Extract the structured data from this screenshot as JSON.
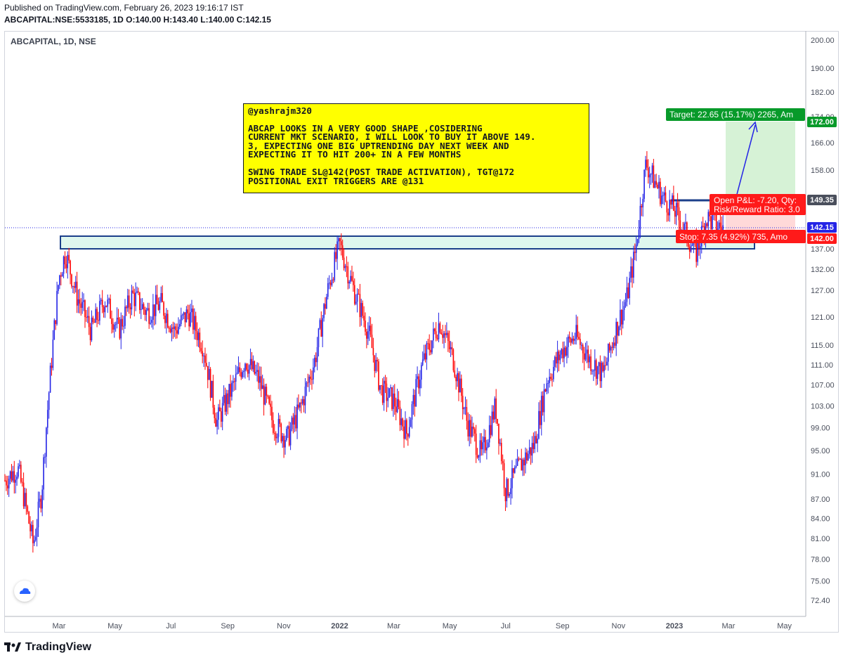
{
  "header": {
    "published": "Published on TradingView.com, February 26, 2023 19:16:17 IST",
    "symbol_line": "ABCAPITAL:NSE:5533185, 1D",
    "ohlc": "O:140.00 H:143.40 L:140.00 C:142.15"
  },
  "chart_label": "ABCAPITAL, 1D, NSE",
  "note": {
    "handle": "@yashrajm320",
    "lines": [
      "ABCAP LOOKS IN A VERY GOOD SHAPE ,COSIDERING",
      "CURRENT MKT SCENARIO, I WILL LOOK TO BUY IT ABOVE 149.",
      "3, EXPECTING ONE BIG UPTRENDING DAY NEXT WEEK AND",
      "EXPECTING IT TO HIT 200+ IN A FEW MONTHS"
    ],
    "lines2": [
      "SWING TRADE SL@142(POST TRADE ACTIVATION), TGT@172",
      "POSITIONAL EXIT TRIGGERS ARE @131"
    ]
  },
  "labels": {
    "target": "Target: 22.65 (15.17%) 2265, Am",
    "open_pl": "Open P&L: -7.20, Qty: ",
    "rr": "Risk/Reward Ratio: 3.0",
    "stop": "Stop: 7.35 (4.92%) 735, Amo",
    "price_172": "172.00",
    "price_149": "149.35",
    "price_142_15": "142.15",
    "price_142": "142.00"
  },
  "footer": {
    "brand": "TradingView"
  },
  "colors": {
    "up": "#2424e6",
    "down": "#ff0000",
    "target_fill": "#d6f2d6",
    "stop_fill": "#ffd9d9",
    "zone_fill": "#dff7ee",
    "zone_border": "#1c3f8a",
    "green_label": "#089a2a",
    "red_label": "#ff1a1a",
    "blue_label": "#2424e6",
    "gray_label": "#4a4f5c"
  },
  "chart_data": {
    "type": "candlestick",
    "title": "ABCAPITAL, 1D, NSE",
    "y_ticks": [
      200.0,
      190.0,
      182.0,
      174.0,
      166.0,
      158.0,
      149.35,
      142.15,
      137.0,
      132.0,
      127.0,
      121.0,
      115.0,
      111.0,
      107.0,
      103.0,
      99.0,
      95.0,
      91.0,
      87.0,
      84.0,
      81.0,
      78.0,
      75.0,
      72.4
    ],
    "x_ticks": [
      "Mar",
      "May",
      "Jul",
      "Sep",
      "Nov",
      "2022",
      "Mar",
      "May",
      "Jul",
      "Sep",
      "Nov",
      "2023",
      "Mar",
      "May"
    ],
    "y_scale": "log",
    "series_path": [
      [
        "2021-01-01",
        90
      ],
      [
        "2021-01-15",
        92
      ],
      [
        "2021-02-01",
        80
      ],
      [
        "2021-02-10",
        88
      ],
      [
        "2021-02-20",
        110
      ],
      [
        "2021-03-01",
        130
      ],
      [
        "2021-03-08",
        136
      ],
      [
        "2021-03-20",
        126
      ],
      [
        "2021-04-05",
        118
      ],
      [
        "2021-04-20",
        125
      ],
      [
        "2021-05-05",
        118
      ],
      [
        "2021-05-20",
        126
      ],
      [
        "2021-06-05",
        122
      ],
      [
        "2021-06-20",
        124
      ],
      [
        "2021-07-05",
        118
      ],
      [
        "2021-07-20",
        122
      ],
      [
        "2021-08-05",
        115
      ],
      [
        "2021-08-20",
        100
      ],
      [
        "2021-09-05",
        106
      ],
      [
        "2021-09-20",
        112
      ],
      [
        "2021-10-05",
        108
      ],
      [
        "2021-10-20",
        100
      ],
      [
        "2021-11-05",
        97
      ],
      [
        "2021-11-20",
        103
      ],
      [
        "2021-12-05",
        112
      ],
      [
        "2021-12-20",
        128
      ],
      [
        "2022-01-01",
        138
      ],
      [
        "2022-01-15",
        128
      ],
      [
        "2022-02-01",
        118
      ],
      [
        "2022-02-15",
        106
      ],
      [
        "2022-03-01",
        104
      ],
      [
        "2022-03-15",
        98
      ],
      [
        "2022-04-01",
        111
      ],
      [
        "2022-04-20",
        120
      ],
      [
        "2022-05-05",
        112
      ],
      [
        "2022-05-20",
        100
      ],
      [
        "2022-06-05",
        94
      ],
      [
        "2022-06-20",
        103
      ],
      [
        "2022-07-01",
        88
      ],
      [
        "2022-07-15",
        92
      ],
      [
        "2022-08-01",
        96
      ],
      [
        "2022-08-15",
        108
      ],
      [
        "2022-09-01",
        114
      ],
      [
        "2022-09-15",
        117
      ],
      [
        "2022-10-01",
        112
      ],
      [
        "2022-10-15",
        109
      ],
      [
        "2022-11-01",
        120
      ],
      [
        "2022-11-10",
        125
      ],
      [
        "2022-11-20",
        137
      ],
      [
        "2022-12-01",
        160
      ],
      [
        "2022-12-10",
        155
      ],
      [
        "2022-12-20",
        150
      ],
      [
        "2023-01-01",
        147
      ],
      [
        "2023-01-15",
        140
      ],
      [
        "2023-01-25",
        136
      ],
      [
        "2023-02-05",
        145
      ],
      [
        "2023-02-15",
        143
      ],
      [
        "2023-02-24",
        142.15
      ]
    ],
    "long_position": {
      "entry": 149.35,
      "target": 172.0,
      "stop": 142.0
    },
    "current_price": 142.15,
    "zone": {
      "top": 140,
      "bottom": 136
    },
    "ohlc_last": {
      "open": 140.0,
      "high": 143.4,
      "low": 140.0,
      "close": 142.15
    }
  }
}
